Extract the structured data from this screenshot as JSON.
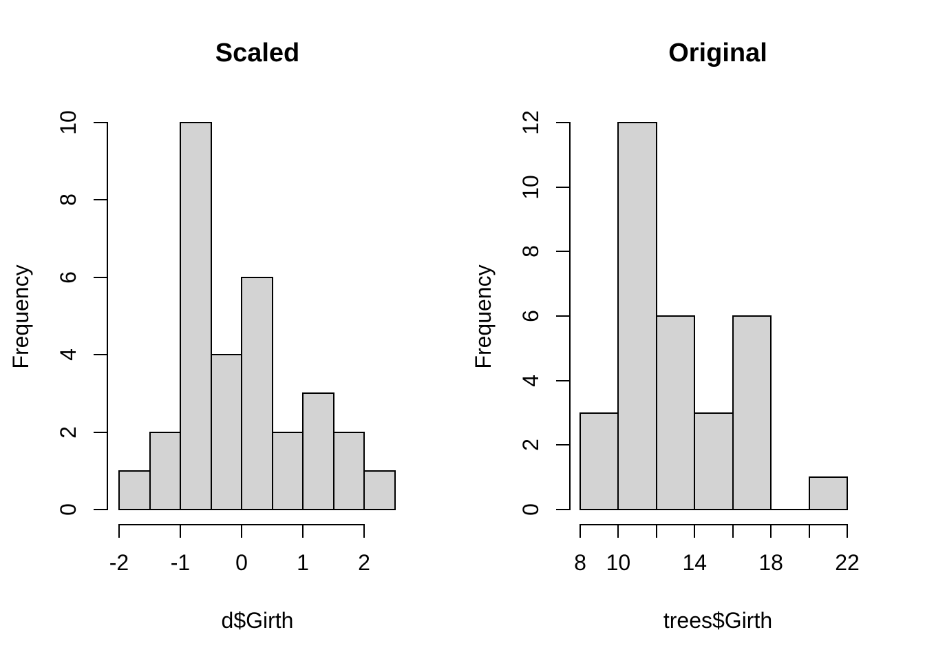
{
  "figure": {
    "background": "#ffffff",
    "text_color": "#000000"
  },
  "chart_data": [
    {
      "type": "bar",
      "subtype": "histogram",
      "title": "Scaled",
      "xlabel": "d$Girth",
      "ylabel": "Frequency",
      "bin_edges": [
        -2,
        -1.5,
        -1,
        -0.5,
        0,
        0.5,
        1,
        1.5,
        2,
        2.5
      ],
      "counts": [
        1,
        2,
        10,
        4,
        6,
        2,
        3,
        2,
        1
      ],
      "x_ticks": [
        -2,
        -1,
        0,
        1,
        2
      ],
      "x_tick_labels": [
        "-2",
        "-1",
        "0",
        "1",
        "2"
      ],
      "y_ticks": [
        0,
        2,
        4,
        6,
        8,
        10
      ],
      "y_tick_labels": [
        "0",
        "2",
        "4",
        "6",
        "8",
        "10"
      ],
      "xlim": [
        -2,
        2.5
      ],
      "ylim": [
        0,
        10
      ],
      "bar_fill": "#d3d3d3",
      "bar_border": "#000000",
      "grid": false,
      "legend": false
    },
    {
      "type": "bar",
      "subtype": "histogram",
      "title": "Original",
      "xlabel": "trees$Girth",
      "ylabel": "Frequency",
      "bin_edges": [
        8,
        10,
        12,
        14,
        16,
        18,
        20,
        22
      ],
      "counts": [
        3,
        12,
        6,
        3,
        6,
        0,
        1
      ],
      "x_ticks": [
        8,
        10,
        12,
        14,
        16,
        18,
        20,
        22
      ],
      "x_tick_labels": [
        "8",
        "10",
        "",
        "14",
        "",
        "18",
        "",
        "22"
      ],
      "y_ticks": [
        0,
        2,
        4,
        6,
        8,
        10,
        12
      ],
      "y_tick_labels": [
        "0",
        "2",
        "4",
        "6",
        "8",
        "10",
        "12"
      ],
      "xlim": [
        8,
        22
      ],
      "ylim": [
        0,
        12
      ],
      "bar_fill": "#d3d3d3",
      "bar_border": "#000000",
      "grid": false,
      "legend": false
    }
  ]
}
